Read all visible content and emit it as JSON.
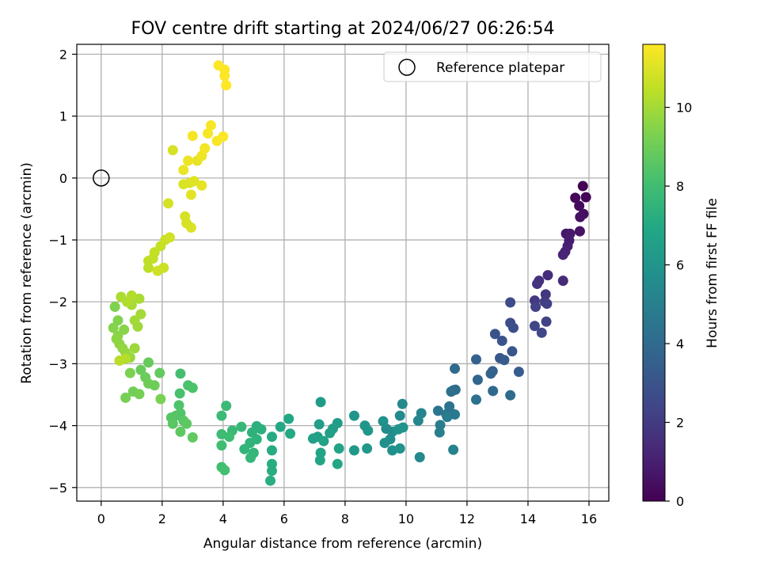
{
  "chart_data": {
    "type": "scatter",
    "title": "FOV centre drift starting at 2024/06/27 06:26:54",
    "xlabel": "Angular distance from reference (arcmin)",
    "ylabel": "Rotation from reference (arcmin)",
    "xlim": [
      -0.8,
      16.65
    ],
    "ylim": [
      -5.22,
      2.16
    ],
    "xticks": [
      0,
      2,
      4,
      6,
      8,
      10,
      12,
      14,
      16
    ],
    "yticks": [
      -5,
      -4,
      -3,
      -2,
      -1,
      0,
      1,
      2
    ],
    "grid": true,
    "legend": {
      "position": "top-right",
      "entries": [
        "Reference platepar"
      ]
    },
    "reference_point": {
      "x": 0,
      "y": 0,
      "label": "Reference platepar"
    },
    "colorbar": {
      "label": "Hours from first FF file",
      "min": 0,
      "max": 11.6,
      "ticks": [
        0,
        2,
        4,
        6,
        8,
        10
      ],
      "colormap": "viridis"
    },
    "series": [
      {
        "points": [
          [
            15.8,
            -0.13,
            0.0
          ],
          [
            15.9,
            -0.31,
            0.1
          ],
          [
            15.55,
            -0.32,
            0.2
          ],
          [
            15.68,
            -0.45,
            0.3
          ],
          [
            15.82,
            -0.58,
            0.4
          ],
          [
            15.71,
            -0.63,
            0.5
          ],
          [
            15.7,
            -0.86,
            0.6
          ],
          [
            15.25,
            -0.9,
            0.7
          ],
          [
            15.38,
            -0.9,
            0.8
          ],
          [
            15.35,
            -1.01,
            0.9
          ],
          [
            15.3,
            -1.1,
            1.0
          ],
          [
            15.22,
            -1.19,
            1.1
          ],
          [
            15.15,
            -1.24,
            1.2
          ],
          [
            15.15,
            -1.66,
            1.4
          ],
          [
            14.65,
            -1.57,
            1.5
          ],
          [
            14.36,
            -1.66,
            1.6
          ],
          [
            14.3,
            -1.71,
            1.7
          ],
          [
            14.58,
            -1.88,
            1.8
          ],
          [
            14.22,
            -1.98,
            1.9
          ],
          [
            14.55,
            -2.0,
            2.0
          ],
          [
            14.62,
            -2.03,
            2.1
          ],
          [
            14.25,
            -2.08,
            2.2
          ],
          [
            14.6,
            -2.32,
            2.3
          ],
          [
            14.22,
            -2.39,
            2.4
          ],
          [
            14.45,
            -2.5,
            2.5
          ],
          [
            13.42,
            -2.01,
            2.6
          ],
          [
            13.42,
            -2.34,
            2.7
          ],
          [
            13.52,
            -2.42,
            2.8
          ],
          [
            12.92,
            -2.52,
            2.9
          ],
          [
            13.15,
            -2.63,
            3.0
          ],
          [
            13.48,
            -2.8,
            3.1
          ],
          [
            13.08,
            -2.91,
            3.2
          ],
          [
            13.22,
            -2.94,
            3.3
          ],
          [
            13.7,
            -3.13,
            3.4
          ],
          [
            12.84,
            -3.12,
            3.5
          ],
          [
            12.3,
            -2.93,
            3.6
          ],
          [
            12.78,
            -3.16,
            3.7
          ],
          [
            12.35,
            -3.26,
            3.8
          ],
          [
            12.85,
            -3.44,
            3.9
          ],
          [
            13.42,
            -3.51,
            4.0
          ],
          [
            11.6,
            -3.08,
            4.05
          ],
          [
            11.55,
            -3.43,
            4.1
          ],
          [
            11.62,
            -3.42,
            4.15
          ],
          [
            11.48,
            -3.45,
            4.2
          ],
          [
            12.3,
            -3.58,
            4.3
          ],
          [
            11.42,
            -3.69,
            4.35
          ],
          [
            11.42,
            -3.76,
            4.4
          ],
          [
            11.05,
            -3.76,
            4.5
          ],
          [
            11.32,
            -3.82,
            4.6
          ],
          [
            11.6,
            -3.82,
            4.7
          ],
          [
            11.35,
            -3.86,
            4.8
          ],
          [
            11.12,
            -3.99,
            4.9
          ],
          [
            11.1,
            -4.11,
            5.0
          ],
          [
            11.55,
            -4.39,
            5.1
          ],
          [
            10.5,
            -3.8,
            5.2
          ],
          [
            10.4,
            -3.92,
            5.3
          ],
          [
            10.45,
            -4.51,
            5.4
          ],
          [
            9.88,
            -3.65,
            5.45
          ],
          [
            9.8,
            -3.84,
            5.5
          ],
          [
            9.35,
            -4.05,
            5.55
          ],
          [
            9.55,
            -4.1,
            5.6
          ],
          [
            9.48,
            -4.22,
            5.65
          ],
          [
            9.3,
            -4.28,
            5.7
          ],
          [
            9.55,
            -4.4,
            5.75
          ],
          [
            9.25,
            -3.93,
            5.8
          ],
          [
            9.8,
            -4.37,
            5.85
          ],
          [
            9.9,
            -4.03,
            5.9
          ],
          [
            9.75,
            -4.06,
            5.95
          ],
          [
            8.3,
            -3.84,
            6.0
          ],
          [
            8.65,
            -4.0,
            6.05
          ],
          [
            8.75,
            -4.08,
            6.1
          ],
          [
            8.72,
            -4.37,
            6.15
          ],
          [
            8.3,
            -4.4,
            6.2
          ],
          [
            7.2,
            -3.62,
            6.3
          ],
          [
            7.75,
            -3.96,
            6.35
          ],
          [
            7.15,
            -3.98,
            6.4
          ],
          [
            7.6,
            -4.05,
            6.45
          ],
          [
            7.5,
            -4.12,
            6.5
          ],
          [
            7.1,
            -4.18,
            6.55
          ],
          [
            6.95,
            -4.21,
            6.6
          ],
          [
            7.3,
            -4.25,
            6.65
          ],
          [
            7.8,
            -4.37,
            6.7
          ],
          [
            7.2,
            -4.44,
            6.75
          ],
          [
            7.18,
            -4.56,
            6.8
          ],
          [
            7.75,
            -4.62,
            6.85
          ],
          [
            6.15,
            -3.89,
            6.9
          ],
          [
            5.88,
            -4.02,
            6.95
          ],
          [
            6.2,
            -4.13,
            7.0
          ],
          [
            5.6,
            -4.18,
            7.05
          ],
          [
            5.6,
            -4.4,
            7.1
          ],
          [
            5.6,
            -4.62,
            7.15
          ],
          [
            5.6,
            -4.73,
            7.2
          ],
          [
            5.55,
            -4.89,
            7.25
          ],
          [
            5.1,
            -4.01,
            7.3
          ],
          [
            5.25,
            -4.06,
            7.35
          ],
          [
            4.95,
            -4.11,
            7.4
          ],
          [
            5.1,
            -4.22,
            7.45
          ],
          [
            4.88,
            -4.28,
            7.5
          ],
          [
            4.7,
            -4.38,
            7.55
          ],
          [
            5.0,
            -4.44,
            7.6
          ],
          [
            4.9,
            -4.52,
            7.65
          ],
          [
            4.6,
            -4.02,
            7.7
          ],
          [
            4.3,
            -4.08,
            7.75
          ],
          [
            4.1,
            -3.68,
            7.8
          ],
          [
            3.95,
            -3.84,
            7.85
          ],
          [
            3.95,
            -4.14,
            7.9
          ],
          [
            4.2,
            -4.18,
            7.95
          ],
          [
            3.95,
            -4.32,
            8.0
          ],
          [
            3.95,
            -4.67,
            8.05
          ],
          [
            4.05,
            -4.72,
            8.1
          ],
          [
            2.6,
            -3.16,
            8.15
          ],
          [
            2.58,
            -3.48,
            8.2
          ],
          [
            2.85,
            -3.35,
            8.25
          ],
          [
            3.0,
            -3.39,
            8.3
          ],
          [
            2.55,
            -3.67,
            8.35
          ],
          [
            2.6,
            -3.8,
            8.4
          ],
          [
            2.45,
            -3.84,
            8.45
          ],
          [
            2.3,
            -3.87,
            8.5
          ],
          [
            2.7,
            -3.92,
            8.55
          ],
          [
            2.35,
            -3.97,
            8.6
          ],
          [
            2.8,
            -3.97,
            8.65
          ],
          [
            2.6,
            -4.1,
            8.7
          ],
          [
            3.0,
            -4.19,
            8.75
          ],
          [
            1.92,
            -3.15,
            8.8
          ],
          [
            1.55,
            -2.98,
            8.85
          ],
          [
            1.3,
            -3.1,
            8.9
          ],
          [
            1.45,
            -3.22,
            8.95
          ],
          [
            1.75,
            -3.35,
            9.0
          ],
          [
            1.55,
            -3.32,
            9.05
          ],
          [
            1.05,
            -3.45,
            9.1
          ],
          [
            1.25,
            -3.49,
            9.15
          ],
          [
            0.8,
            -3.55,
            9.2
          ],
          [
            1.95,
            -3.57,
            9.25
          ],
          [
            0.95,
            -3.15,
            9.3
          ],
          [
            0.45,
            -2.08,
            9.35
          ],
          [
            0.55,
            -2.3,
            9.4
          ],
          [
            0.4,
            -2.42,
            9.45
          ],
          [
            0.75,
            -2.45,
            9.5
          ],
          [
            0.55,
            -2.55,
            9.55
          ],
          [
            0.5,
            -2.6,
            9.6
          ],
          [
            0.6,
            -2.68,
            9.65
          ],
          [
            0.7,
            -2.75,
            9.7
          ],
          [
            0.8,
            -2.82,
            9.75
          ],
          [
            0.95,
            -2.9,
            9.8
          ],
          [
            1.1,
            -2.75,
            9.85
          ],
          [
            1.2,
            -2.4,
            9.9
          ],
          [
            1.1,
            -2.3,
            9.95
          ],
          [
            1.3,
            -2.2,
            10.0
          ],
          [
            1.0,
            -2.05,
            10.05
          ],
          [
            1.25,
            -1.95,
            10.1
          ],
          [
            0.65,
            -1.92,
            10.15
          ],
          [
            0.85,
            -2.0,
            10.2
          ],
          [
            1.0,
            -1.9,
            10.25
          ],
          [
            0.8,
            -2.92,
            10.3
          ],
          [
            0.6,
            -2.95,
            10.35
          ],
          [
            1.55,
            -1.45,
            10.4
          ],
          [
            1.55,
            -1.34,
            10.45
          ],
          [
            1.7,
            -1.3,
            10.5
          ],
          [
            1.75,
            -1.2,
            10.55
          ],
          [
            1.95,
            -1.1,
            10.6
          ],
          [
            2.1,
            -1.0,
            10.65
          ],
          [
            2.05,
            -1.45,
            10.7
          ],
          [
            1.85,
            -1.5,
            10.75
          ],
          [
            2.25,
            -0.96,
            10.8
          ],
          [
            2.2,
            -0.41,
            10.85
          ],
          [
            2.35,
            0.45,
            10.9
          ],
          [
            2.7,
            -0.1,
            10.95
          ],
          [
            2.9,
            -0.08,
            11.0
          ],
          [
            3.05,
            -0.05,
            11.05
          ],
          [
            2.95,
            -0.27,
            11.1
          ],
          [
            3.3,
            -0.12,
            11.15
          ],
          [
            3.15,
            0.28,
            11.2
          ],
          [
            2.7,
            0.13,
            11.25
          ],
          [
            2.85,
            0.28,
            11.3
          ],
          [
            3.3,
            0.36,
            11.35
          ],
          [
            3.4,
            0.48,
            11.4
          ],
          [
            3.0,
            0.68,
            11.45
          ],
          [
            3.5,
            0.72,
            11.48
          ],
          [
            3.6,
            0.85,
            11.5
          ],
          [
            3.8,
            0.6,
            11.52
          ],
          [
            4.0,
            0.67,
            11.54
          ],
          [
            3.85,
            1.82,
            11.56
          ],
          [
            4.05,
            1.75,
            11.58
          ],
          [
            4.05,
            1.65,
            11.6
          ],
          [
            4.1,
            1.5,
            11.6
          ],
          [
            2.75,
            -0.62,
            10.9
          ],
          [
            2.8,
            -0.73,
            10.92
          ],
          [
            2.95,
            -0.8,
            10.94
          ]
        ]
      }
    ]
  }
}
